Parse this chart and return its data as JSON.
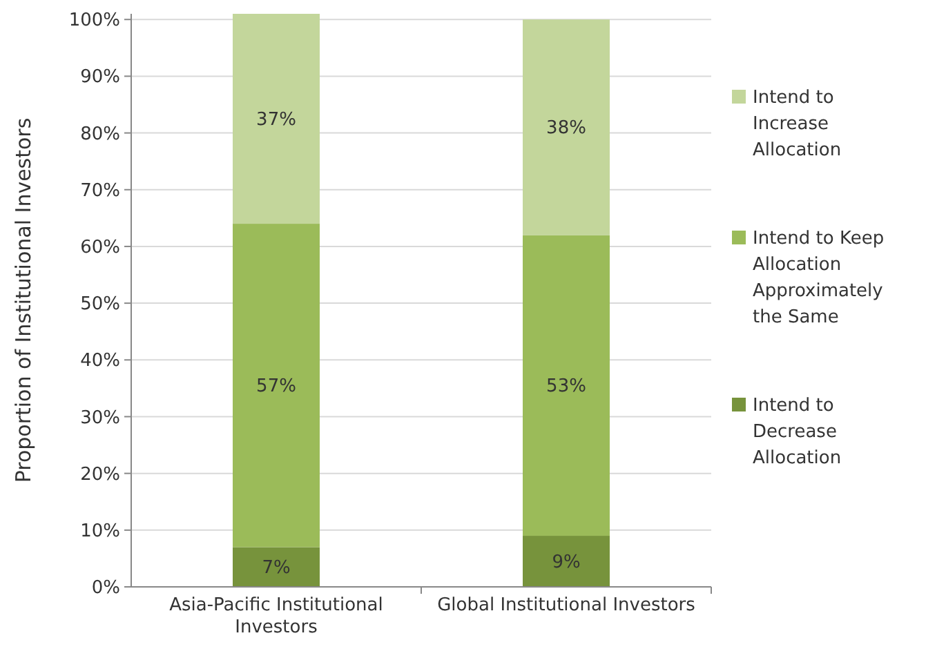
{
  "chart_data": {
    "type": "bar",
    "stacked": true,
    "ylabel": "Proportion of Institutional Investors",
    "categories": [
      "Asia-Pacific Institutional Investors",
      "Global Institutional Investors"
    ],
    "series": [
      {
        "name": "Intend to Decrease Allocation",
        "color": "#77933c",
        "values": [
          7,
          9
        ],
        "value_labels": [
          "7%",
          "9%"
        ]
      },
      {
        "name": "Intend to Keep Allocation Approximately the Same",
        "color": "#9bbb59",
        "values": [
          57,
          53
        ],
        "value_labels": [
          "57%",
          "53%"
        ]
      },
      {
        "name": "Intend to Increase Allocation",
        "color": "#c3d69b",
        "values": [
          37,
          38
        ],
        "value_labels": [
          "37%",
          "38%"
        ]
      }
    ],
    "ylim": [
      0,
      101
    ],
    "yticks": [
      {
        "value": 0,
        "label": "0%"
      },
      {
        "value": 10,
        "label": "10%"
      },
      {
        "value": 20,
        "label": "20%"
      },
      {
        "value": 30,
        "label": "30%"
      },
      {
        "value": 40,
        "label": "40%"
      },
      {
        "value": 50,
        "label": "50%"
      },
      {
        "value": 60,
        "label": "60%"
      },
      {
        "value": 70,
        "label": "70%"
      },
      {
        "value": 80,
        "label": "80%"
      },
      {
        "value": 90,
        "label": "90%"
      },
      {
        "value": 100,
        "label": "100%"
      }
    ],
    "grid": "y",
    "legend": "right"
  }
}
